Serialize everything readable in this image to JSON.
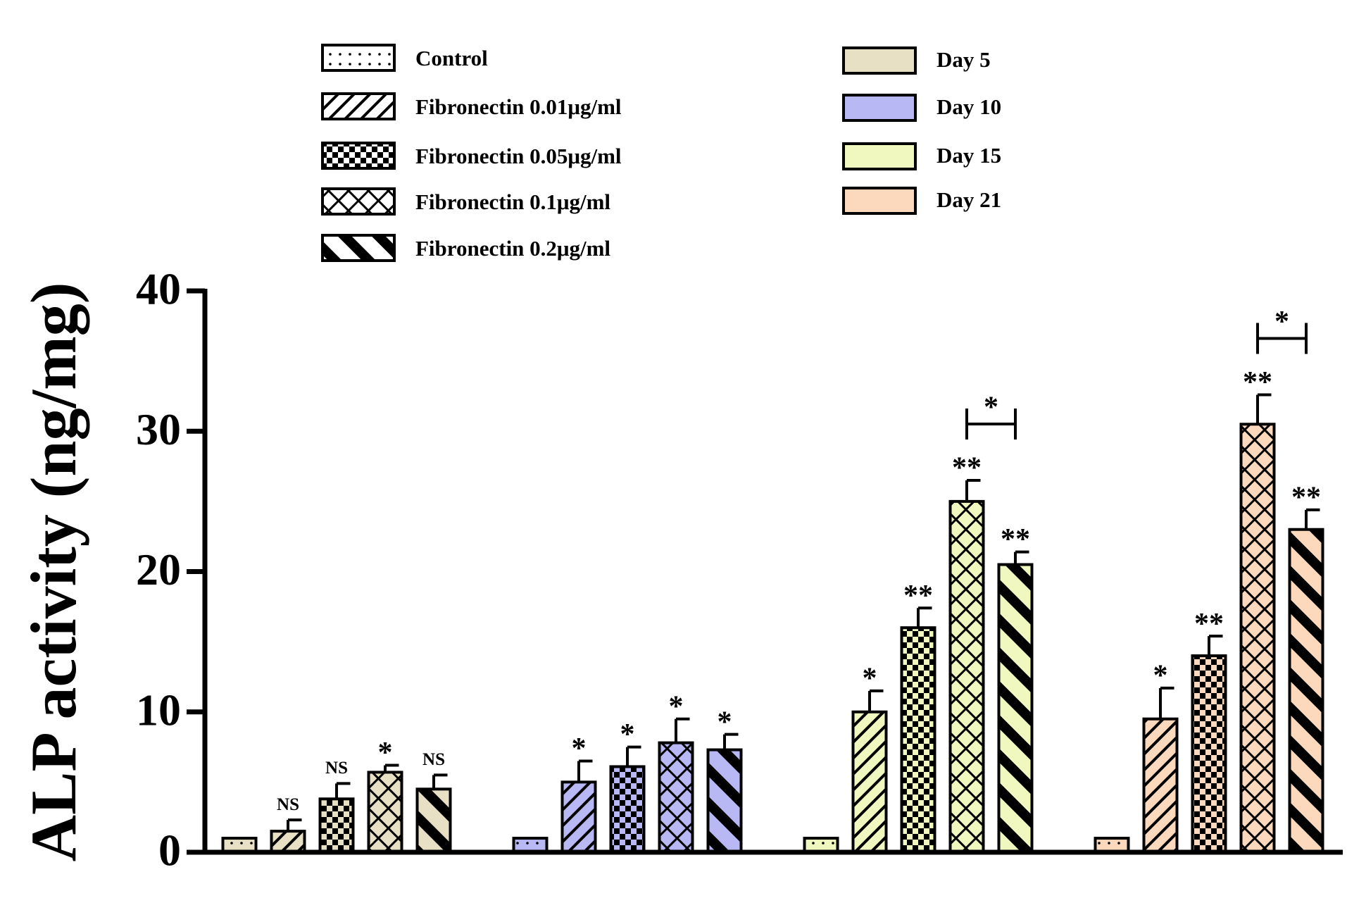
{
  "chart_data": {
    "type": "bar",
    "ylabel": "ALP activity (ng/mg)",
    "ylim": [
      0,
      40
    ],
    "yticks": [
      0,
      10,
      20,
      30,
      40
    ],
    "treatments": [
      "Control",
      "Fibronectin 0.01μg/ml",
      "Fibronectin 0.05μg/ml",
      "Fibronectin 0.1μg/ml",
      "Fibronectin 0.2μg/ml"
    ],
    "series": [
      {
        "name": "Day 5",
        "color": "#e8e0c4",
        "values": [
          1,
          1.5,
          3.8,
          5.7,
          4.5
        ],
        "errors": [
          null,
          0.8,
          1.1,
          0.5,
          1.0
        ],
        "annotations": [
          null,
          "NS",
          "NS",
          "*",
          "NS"
        ]
      },
      {
        "name": "Day 10",
        "color": "#b8b8f4",
        "values": [
          1,
          5.0,
          6.1,
          7.8,
          7.3
        ],
        "errors": [
          null,
          1.5,
          1.4,
          1.7,
          1.1
        ],
        "annotations": [
          null,
          "*",
          "*",
          "*",
          "*"
        ]
      },
      {
        "name": "Day 15",
        "color": "#f0f8c0",
        "values": [
          1,
          10.0,
          16.0,
          25.0,
          20.5
        ],
        "errors": [
          null,
          1.5,
          1.4,
          1.5,
          0.9
        ],
        "annotations": [
          null,
          "*",
          "**",
          "**",
          "**"
        ]
      },
      {
        "name": "Day 21",
        "color": "#fcd8bc",
        "values": [
          1,
          9.5,
          14.0,
          30.5,
          23.0
        ],
        "errors": [
          null,
          2.2,
          1.4,
          2.1,
          1.4
        ],
        "annotations": [
          null,
          "*",
          "**",
          "**",
          "**"
        ]
      }
    ],
    "brackets": [
      {
        "group": "Day 15",
        "between": [
          "Fibronectin 0.1μg/ml",
          "Fibronectin 0.2μg/ml"
        ],
        "label": "*"
      },
      {
        "group": "Day 21",
        "between": [
          "Fibronectin 0.1μg/ml",
          "Fibronectin 0.2μg/ml"
        ],
        "label": "*"
      }
    ]
  }
}
